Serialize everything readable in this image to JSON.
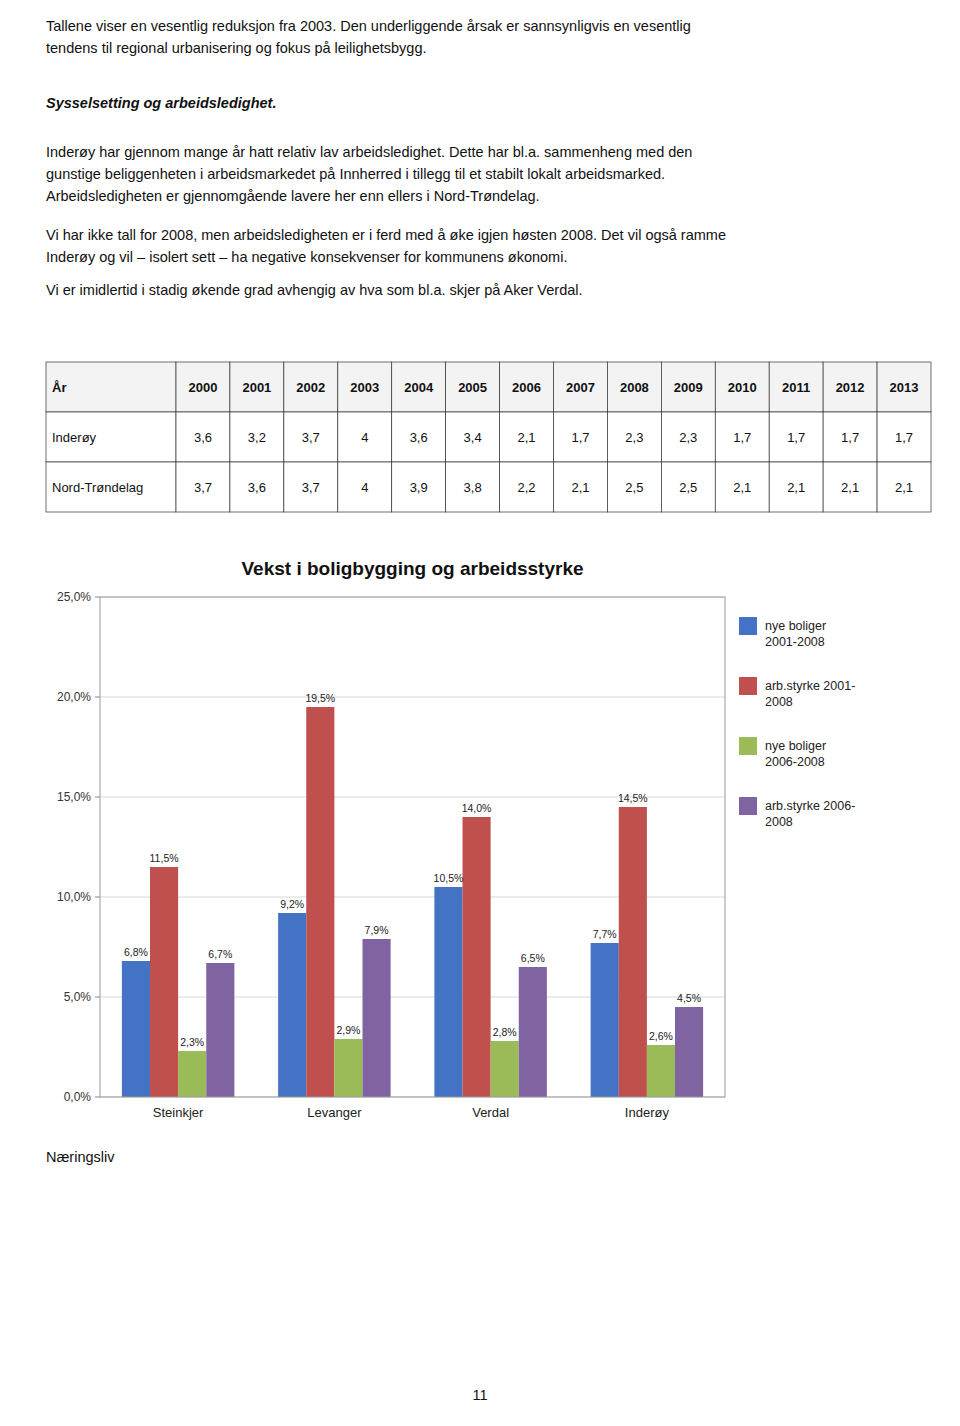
{
  "para0": [
    "Tallene viser en vesentlig reduksjon fra 2003. Den underliggende årsak er sannsynligvis en vesentlig",
    "tendens til regional urbanisering og fokus på leilighetsbygg."
  ],
  "section_title": "Sysselsetting og arbeidsledighet.",
  "para1": [
    "Inderøy har gjennom mange år hatt relativ lav arbeidsledighet.  Dette har bl.a. sammenheng med den",
    "gunstige beliggenheten i arbeidsmarkedet på Innherred i tillegg til et stabilt lokalt arbeidsmarked.",
    "Arbeidsledigheten er gjennomgående lavere her enn ellers i Nord-Trøndelag."
  ],
  "para2": [
    "Vi har ikke tall for 2008, men arbeidsledigheten er i ferd med å øke igjen høsten 2008. Det vil også ramme",
    "Inderøy og vil – isolert sett – ha negative konsekvenser for kommunens økonomi."
  ],
  "para3": [
    "Vi er imidlertid i stadig økende grad avhengig av hva som bl.a. skjer på Aker Verdal."
  ],
  "table": {
    "columns": [
      "År",
      "2000",
      "2001",
      "2002",
      "2003",
      "2004",
      "2005",
      "2006",
      "2007",
      "2008",
      "2009",
      "2010",
      "2011",
      "2012",
      "2013"
    ],
    "rows": [
      {
        "name": "Inderøy",
        "values": [
          3.6,
          3.2,
          3.7,
          4.0,
          3.6,
          3.4,
          2.1,
          1.7,
          2.3,
          2.3,
          1.7,
          1.7,
          1.7,
          1.7
        ],
        "value_labels": [
          "3,6",
          "3,2",
          "3,7",
          "4",
          "3,6",
          "3,4",
          "2,1",
          "1,7",
          "2,3",
          "2,3",
          "1,7",
          "1,7",
          "1,7",
          "1,7"
        ]
      },
      {
        "name": "Nord-Trøndelag",
        "values": [
          3.7,
          3.6,
          3.7,
          4.0,
          3.9,
          3.8,
          2.2,
          2.1,
          2.5,
          2.5,
          2.1,
          2.1,
          2.1,
          2.1
        ],
        "value_labels": [
          "3,7",
          "3,6",
          "3,7",
          "4",
          "3,9",
          "3,8",
          "2,2",
          "2,1",
          "2,5",
          "2,5",
          "2,1",
          "2,1",
          "2,1",
          "2,1"
        ]
      }
    ]
  },
  "chart_data": {
    "type": "bar",
    "title": "Vekst i boligbygging og arbeidsstyrke",
    "categories": [
      "Steinkjer",
      "Levanger",
      "Verdal",
      "Inderøy"
    ],
    "series": [
      {
        "name": "nye boliger\n2001-2008",
        "color": "#4472c4",
        "values": [
          6.8,
          9.2,
          10.5,
          7.7
        ],
        "value_labels": [
          "6,8%",
          "9,2%",
          "10,5%",
          "7,7%"
        ]
      },
      {
        "name": "arb.styrke 2001-\n2008",
        "color": "#c0504d",
        "values": [
          11.5,
          19.5,
          14.0,
          14.5
        ],
        "value_labels": [
          "11,5%",
          "19,5%",
          "14,0%",
          "14,5%"
        ]
      },
      {
        "name": "nye boliger\n2006-2008",
        "color": "#9bbb59",
        "values": [
          2.3,
          2.9,
          2.8,
          2.6
        ],
        "value_labels": [
          "2,3%",
          "2,9%",
          "2,8%",
          "2,6%"
        ]
      },
      {
        "name": "arb.styrke 2006-\n2008",
        "color": "#8064a2",
        "values": [
          6.7,
          7.9,
          6.5,
          4.5
        ],
        "value_labels": [
          "6,7%",
          "7,9%",
          "6,5%",
          "4,5%"
        ]
      }
    ],
    "ylim": [
      0,
      25.0
    ],
    "yticks": [
      {
        "value": 0.0,
        "label": "0,0%"
      },
      {
        "value": 5.0,
        "label": "5,0%"
      },
      {
        "value": 10.0,
        "label": "10,0%"
      },
      {
        "value": 15.0,
        "label": "15,0%"
      },
      {
        "value": 20.0,
        "label": "20,0%"
      },
      {
        "value": 25.0,
        "label": "25,0%"
      }
    ],
    "grid": true,
    "data_labels": true,
    "legend": "right"
  },
  "footer": "Næringsliv",
  "page_number": "11"
}
